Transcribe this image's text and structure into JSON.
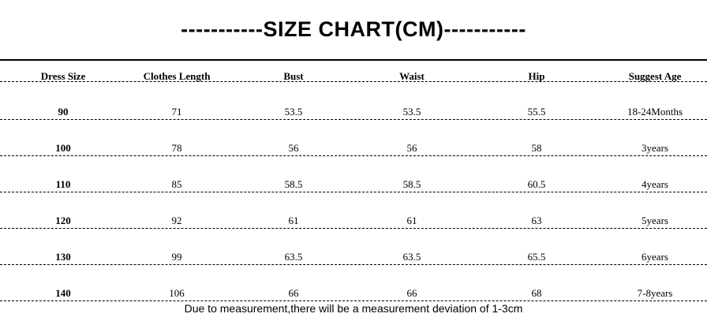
{
  "title": "-----------SIZE CHART(CM)-----------",
  "table": {
    "header": [
      "Dress Size",
      "Clothes Length",
      "Bust",
      "Waist",
      "Hip",
      "Suggest Age"
    ],
    "rows": [
      [
        90,
        71,
        53.5,
        53.5,
        55.5,
        "18-24Months"
      ],
      [
        100,
        78,
        56,
        56,
        58,
        "3years"
      ],
      [
        110,
        85,
        58.5,
        58.5,
        60.5,
        "4years"
      ],
      [
        120,
        92,
        61,
        61,
        63,
        "5years"
      ],
      [
        130,
        99,
        63.5,
        63.5,
        65.5,
        "6years"
      ],
      [
        140,
        106,
        66,
        66,
        68,
        "7-8years"
      ]
    ]
  },
  "note": "Due to measurement,there will be a measurement deviation of 1-3cm"
}
